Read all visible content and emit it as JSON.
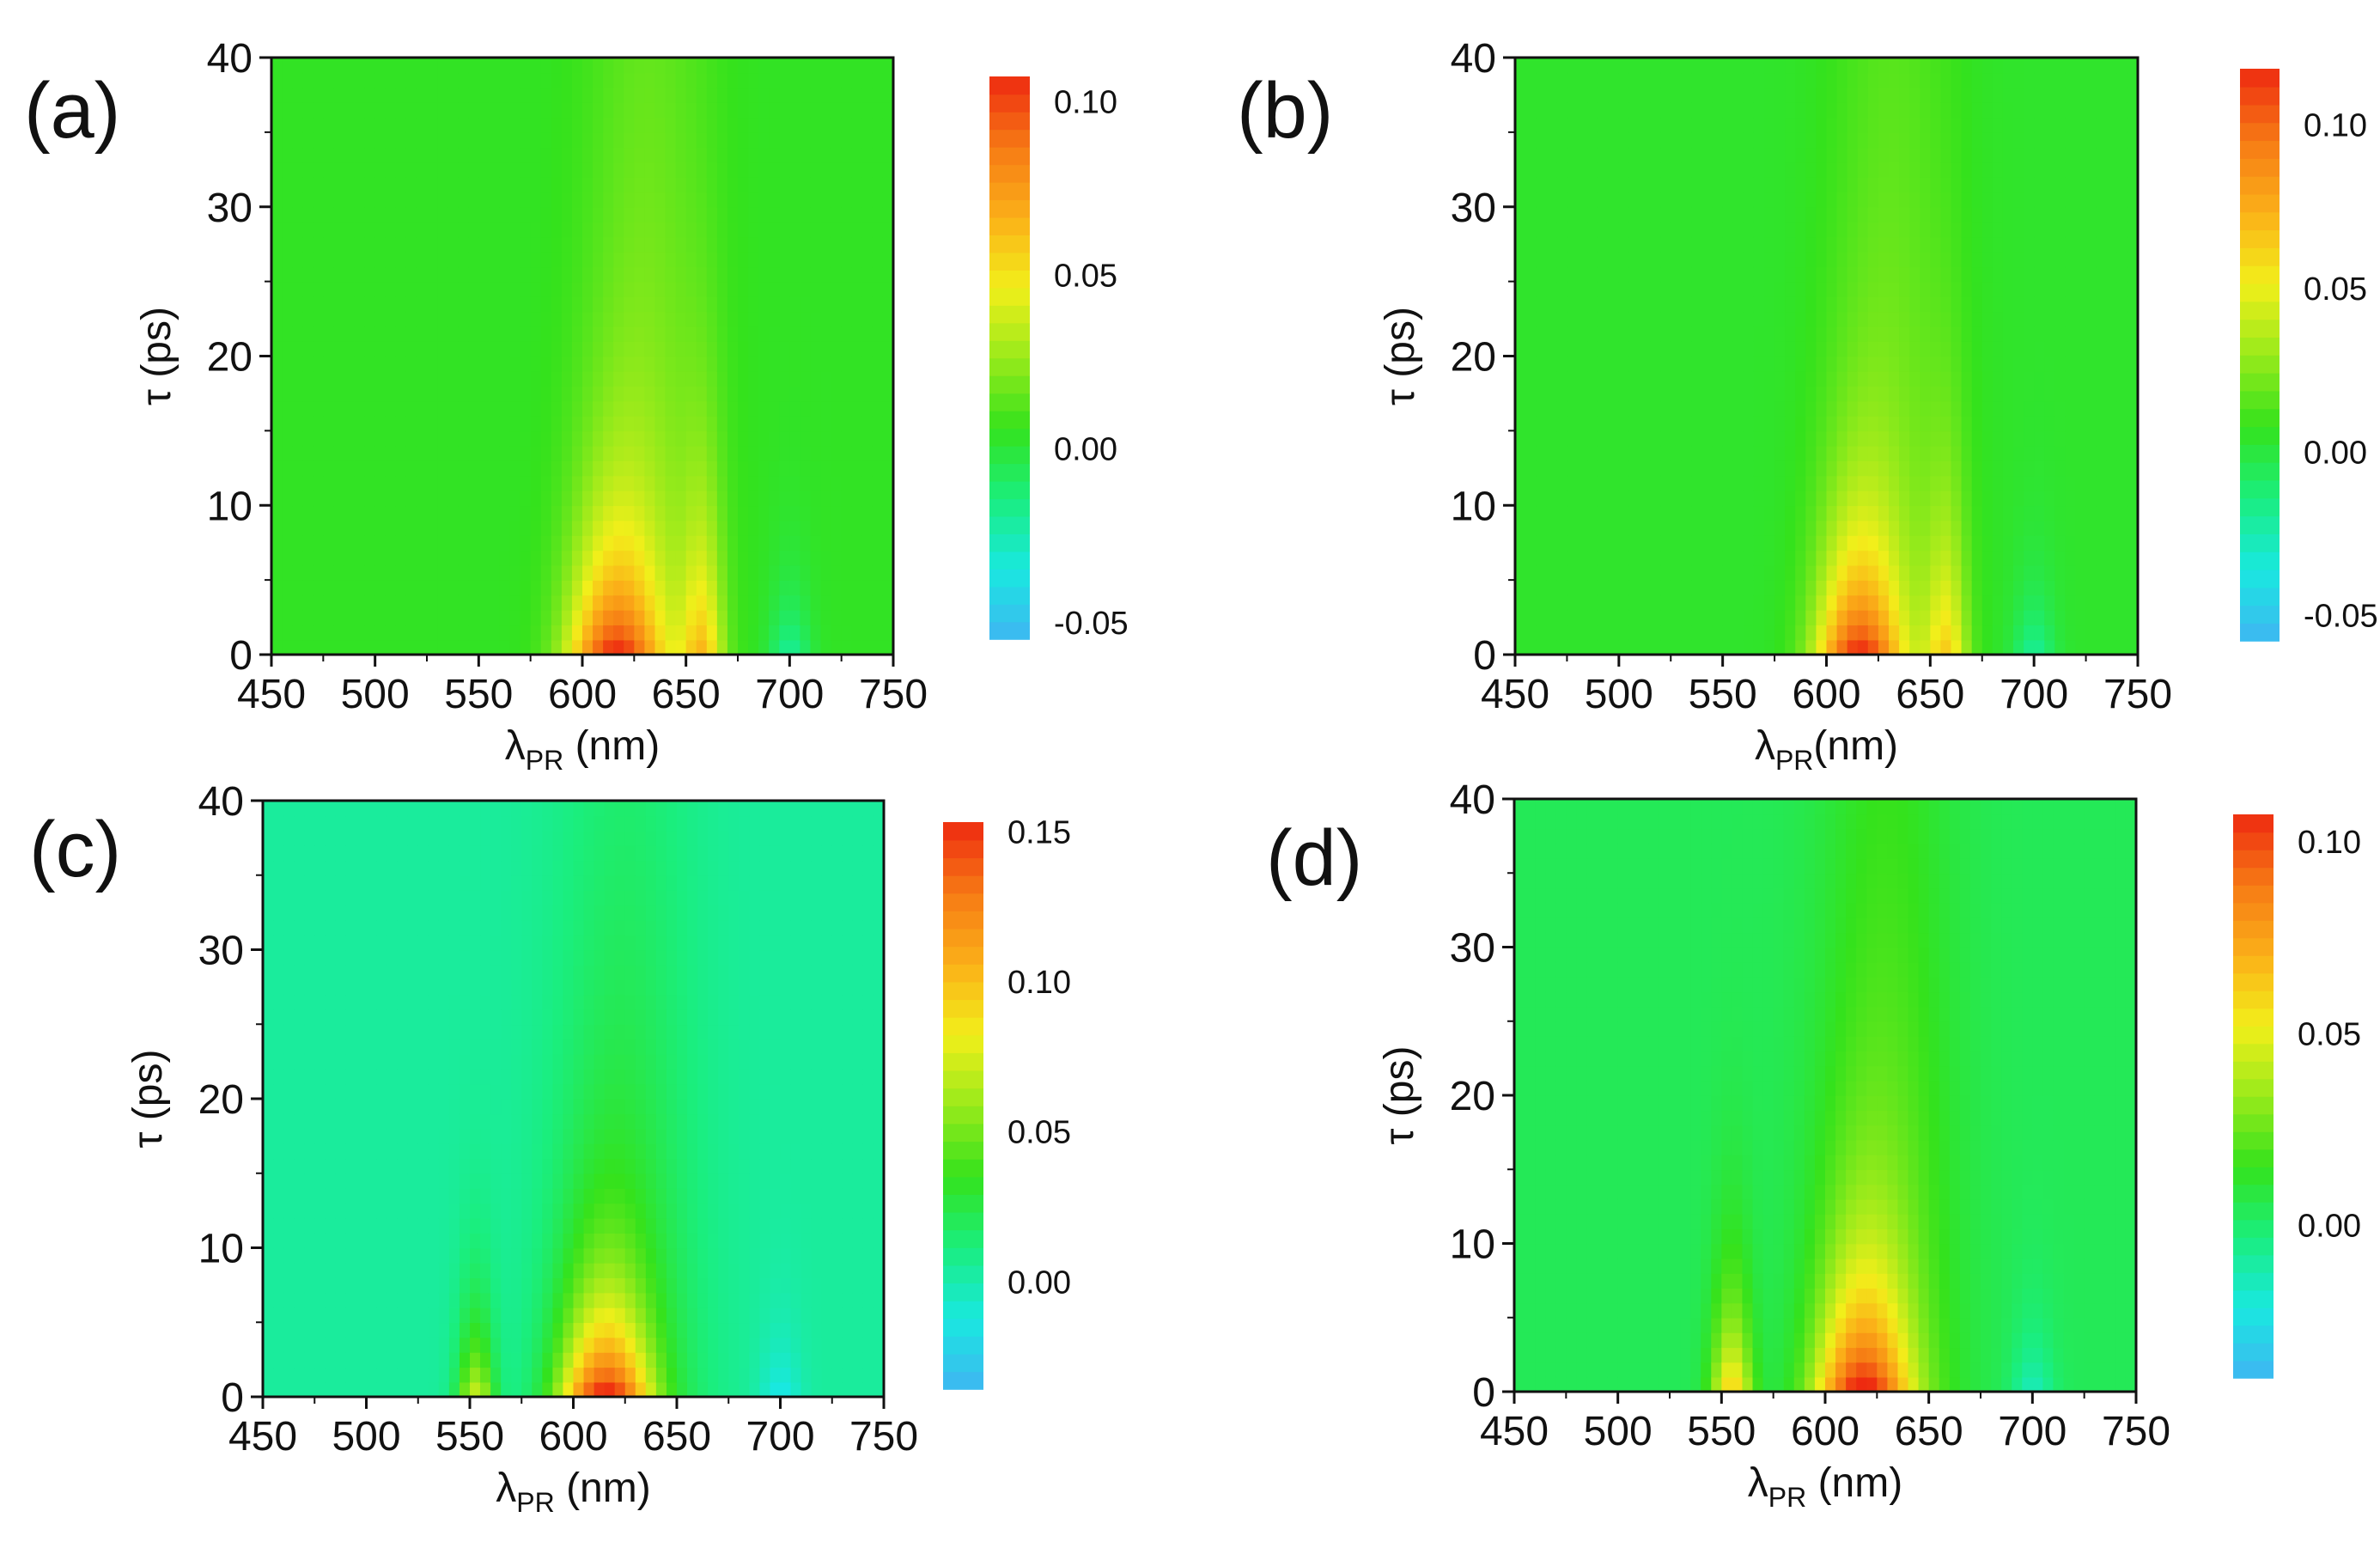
{
  "colormap": [
    "#3fb6f2",
    "#19e8e0",
    "#1aee7e",
    "#34e21c",
    "#98ea1b",
    "#f2ef1a",
    "#fbb018",
    "#f67a14",
    "#ee2a10"
  ],
  "chart_data": [
    {
      "type": "heatmap",
      "panel_label": "(a)",
      "xlabel_main": "λ",
      "xlabel_sub": "PR",
      "xlabel_rest": " (nm)",
      "ylabel": "τ (ps)",
      "xlim": [
        450,
        750
      ],
      "ylim": [
        0,
        40
      ],
      "xticks": [
        450,
        500,
        550,
        600,
        650,
        700,
        750
      ],
      "yticks": [
        0,
        10,
        20,
        30,
        40
      ],
      "colorbar": {
        "min": -0.055,
        "max": 0.107,
        "ticks": [
          0.1,
          0.05,
          0.0,
          -0.05
        ],
        "tick_labels": [
          "0.10",
          "0.05",
          "0.00",
          "-0.05"
        ]
      },
      "features": [
        {
          "lambda": 615,
          "width_nm": 22,
          "tau_decay_ps": 7,
          "amplitude": 0.09
        },
        {
          "lambda": 658,
          "width_nm": 10,
          "tau_decay_ps": 9,
          "amplitude": 0.05
        },
        {
          "lambda": 632,
          "width_nm": 30,
          "tau_decay_ps": 60,
          "amplitude": 0.022
        },
        {
          "lambda": 700,
          "width_nm": 10,
          "tau_decay_ps": 4,
          "amplitude": -0.025
        }
      ]
    },
    {
      "type": "heatmap",
      "panel_label": "(b)",
      "xlabel_main": "λ",
      "xlabel_sub": "PR",
      "xlabel_rest": "(nm)",
      "ylabel": "τ (ps)",
      "xlim": [
        450,
        750
      ],
      "ylim": [
        0,
        40
      ],
      "xticks": [
        450,
        500,
        550,
        600,
        650,
        700,
        750
      ],
      "yticks": [
        0,
        10,
        20,
        30,
        40
      ],
      "colorbar": {
        "min": -0.058,
        "max": 0.117,
        "ticks": [
          0.1,
          0.05,
          0.0,
          -0.05
        ],
        "tick_labels": [
          "0.10",
          "0.05",
          "0.00",
          "-0.05"
        ]
      },
      "features": [
        {
          "lambda": 615,
          "width_nm": 20,
          "tau_decay_ps": 7,
          "amplitude": 0.1
        },
        {
          "lambda": 658,
          "width_nm": 10,
          "tau_decay_ps": 9,
          "amplitude": 0.05
        },
        {
          "lambda": 632,
          "width_nm": 30,
          "tau_decay_ps": 60,
          "amplitude": 0.022
        },
        {
          "lambda": 700,
          "width_nm": 10,
          "tau_decay_ps": 4,
          "amplitude": -0.025
        }
      ]
    },
    {
      "type": "heatmap",
      "panel_label": "(c)",
      "xlabel_main": "λ",
      "xlabel_sub": "PR",
      "xlabel_rest": " (nm)",
      "ylabel": "τ (ps)",
      "xlim": [
        450,
        750
      ],
      "ylim": [
        0,
        40
      ],
      "xticks": [
        450,
        500,
        550,
        600,
        650,
        700,
        750
      ],
      "yticks": [
        0,
        10,
        20,
        30,
        40
      ],
      "colorbar": {
        "min": -0.036,
        "max": 0.153,
        "ticks": [
          0.15,
          0.1,
          0.05,
          0.0
        ],
        "tick_labels": [
          "0.15",
          "0.10",
          "0.05",
          "0.00"
        ]
      },
      "features": [
        {
          "lambda": 615,
          "width_nm": 22,
          "tau_decay_ps": 6,
          "amplitude": 0.13
        },
        {
          "lambda": 553,
          "width_nm": 9,
          "tau_decay_ps": 5,
          "amplitude": 0.07
        },
        {
          "lambda": 625,
          "width_nm": 35,
          "tau_decay_ps": 40,
          "amplitude": 0.03
        },
        {
          "lambda": 700,
          "width_nm": 10,
          "tau_decay_ps": 4,
          "amplitude": -0.02
        }
      ]
    },
    {
      "type": "heatmap",
      "panel_label": "(d)",
      "xlabel_main": "λ",
      "xlabel_sub": "PR",
      "xlabel_rest": " (nm)",
      "ylabel": "τ (ps)",
      "xlim": [
        450,
        750
      ],
      "ylim": [
        0,
        40
      ],
      "xticks": [
        450,
        500,
        550,
        600,
        650,
        700,
        750
      ],
      "yticks": [
        0,
        10,
        20,
        30,
        40
      ],
      "colorbar": {
        "min": -0.04,
        "max": 0.107,
        "ticks": [
          0.1,
          0.05,
          0.0
        ],
        "tick_labels": [
          "0.10",
          "0.05",
          "0.00"
        ]
      },
      "features": [
        {
          "lambda": 617,
          "width_nm": 22,
          "tau_decay_ps": 7,
          "amplitude": 0.09
        },
        {
          "lambda": 555,
          "width_nm": 10,
          "tau_decay_ps": 6,
          "amplitude": 0.06
        },
        {
          "lambda": 630,
          "width_nm": 32,
          "tau_decay_ps": 50,
          "amplitude": 0.025
        },
        {
          "lambda": 700,
          "width_nm": 10,
          "tau_decay_ps": 4,
          "amplitude": -0.02
        }
      ]
    }
  ]
}
